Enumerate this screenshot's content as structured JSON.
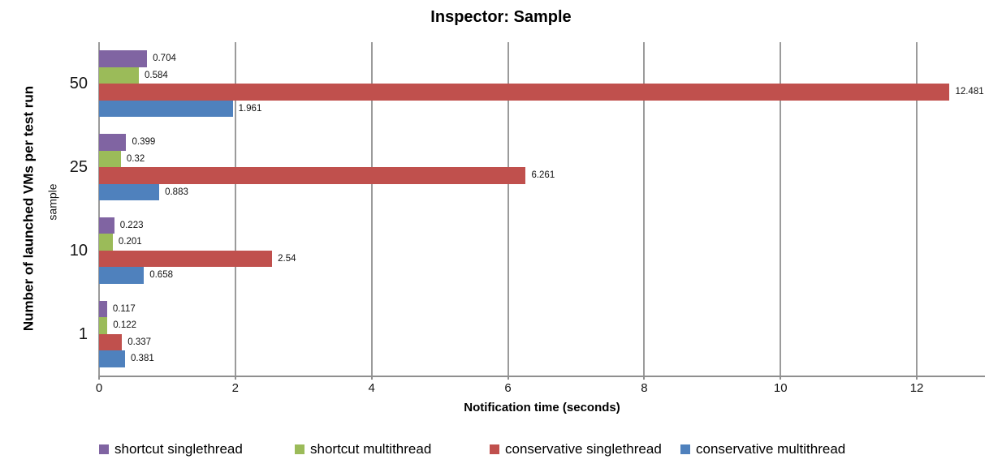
{
  "title": "Inspector: Sample",
  "chart_data": {
    "type": "bar",
    "orientation": "horizontal",
    "title": "Inspector: Sample",
    "xlabel": "Notification time (seconds)",
    "ylabel": "Number of launched VMs per test run",
    "ylabel_inner": "sample",
    "categories": [
      "50",
      "25",
      "10",
      "1"
    ],
    "series": [
      {
        "name": "shortcut singlethread",
        "color": "#8064A2",
        "values": [
          0.704,
          0.399,
          0.223,
          0.117
        ],
        "labels": [
          "0.704",
          "0.399",
          "0.223",
          "0.117"
        ]
      },
      {
        "name": "shortcut multithread",
        "color": "#9BBB59",
        "values": [
          0.584,
          0.32,
          0.201,
          0.122
        ],
        "labels": [
          "0.584",
          "0.32",
          "0.201",
          "0.122"
        ]
      },
      {
        "name": "conservative singlethread",
        "color": "#C0504D",
        "values": [
          12.481,
          6.261,
          2.54,
          0.337
        ],
        "labels": [
          "12.481",
          "6.261",
          "2.54",
          "0.337"
        ]
      },
      {
        "name": "conservative multithread",
        "color": "#4F81BD",
        "values": [
          1.961,
          0.883,
          0.658,
          0.381
        ],
        "labels": [
          "1.961",
          "0.883",
          "0.658",
          "0.381"
        ]
      }
    ],
    "x_ticks": [
      "0",
      "2",
      "4",
      "6",
      "8",
      "10",
      "12"
    ],
    "xlim": [
      0,
      13
    ],
    "grid": true,
    "legend_position": "bottom",
    "gridline_color": "#9b9b9b",
    "axis_color": "#8f8f8f",
    "value_label_color": "#111111"
  }
}
